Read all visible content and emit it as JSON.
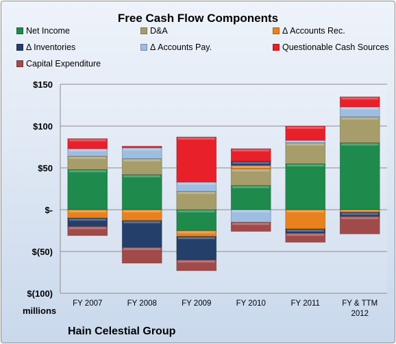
{
  "chart_data": {
    "type": "bar",
    "subtype": "stacked",
    "title": "Free Cash Flow Components",
    "units": "millions",
    "company": "Hain Celestial Group",
    "categories": [
      "FY 2007",
      "FY 2008",
      "FY 2009",
      "FY 2010",
      "FY 2011",
      "FY & TTM 2012"
    ],
    "ylim": [
      -100,
      150
    ],
    "yticks": [
      -100,
      -50,
      0,
      50,
      100,
      150
    ],
    "ytick_labels": [
      "$(100)",
      "$(50)",
      "$-",
      "$50",
      "$100",
      "$150"
    ],
    "grid": true,
    "legend_position": "top",
    "series": [
      {
        "name": "Net Income",
        "color": "#1e8a4c",
        "values": [
          48,
          42,
          -25,
          29,
          55,
          80
        ]
      },
      {
        "name": "D&A",
        "color": "#a79d6a",
        "values": [
          16,
          19,
          22,
          20,
          25,
          31
        ]
      },
      {
        "name": "Δ Accounts Rec.",
        "color": "#e8821e",
        "values": [
          -10,
          -13,
          -7,
          4,
          -23,
          -3
        ]
      },
      {
        "name": "Δ Inventories",
        "color": "#243f6a",
        "values": [
          -10,
          -32,
          -28,
          5,
          -5,
          -5
        ]
      },
      {
        "name": "Δ Accounts Pay.",
        "color": "#9ebde0",
        "values": [
          9,
          13,
          11,
          -15,
          3,
          12
        ]
      },
      {
        "name": "Questionable Cash Sources",
        "color": "#e8202a",
        "values": [
          12,
          2,
          54,
          15,
          17,
          12
        ]
      },
      {
        "name": "Capital Expenditure",
        "color": "#a04a4a",
        "values": [
          -11,
          -19,
          -13,
          -11,
          -11,
          -21
        ]
      }
    ]
  }
}
